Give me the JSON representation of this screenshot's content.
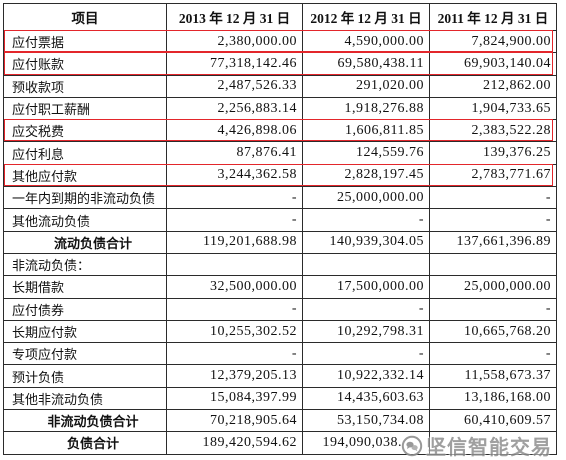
{
  "table": {
    "columns": [
      "项目",
      "2013 年 12 月 31 日",
      "2012 年 12 月 31 日",
      "2011 年 12 月 31 日"
    ],
    "rows": [
      {
        "label": "应付票据",
        "values": [
          "2,380,000.00",
          "4,590,000.00",
          "7,824,900.00"
        ],
        "highlighted": true
      },
      {
        "label": "应付账款",
        "values": [
          "77,318,142.46",
          "69,580,438.11",
          "69,903,140.04"
        ],
        "highlighted": true
      },
      {
        "label": "预收款项",
        "values": [
          "2,487,526.33",
          "291,020.00",
          "212,862.00"
        ]
      },
      {
        "label": "应付职工薪酬",
        "values": [
          "2,256,883.14",
          "1,918,276.88",
          "1,904,733.65"
        ]
      },
      {
        "label": "应交税费",
        "values": [
          "4,426,898.06",
          "1,606,811.85",
          "2,383,522.28"
        ],
        "highlighted": true
      },
      {
        "label": "应付利息",
        "values": [
          "87,876.41",
          "124,559.76",
          "139,376.25"
        ]
      },
      {
        "label": "其他应付款",
        "values": [
          "3,244,362.58",
          "2,828,197.45",
          "2,783,771.67"
        ],
        "highlighted": true
      },
      {
        "label": "一年内到期的非流动负债",
        "values": [
          "-",
          "25,000,000.00",
          "-"
        ]
      },
      {
        "label": "其他流动负债",
        "values": [
          "-",
          "-",
          "-"
        ]
      },
      {
        "label": "流动负债合计",
        "values": [
          "119,201,688.98",
          "140,939,304.05",
          "137,661,396.89"
        ]
      },
      {
        "label": "非流动负债：",
        "values": []
      },
      {
        "label": "长期借款",
        "values": [
          "32,500,000.00",
          "17,500,000.00",
          "25,000,000.00"
        ]
      },
      {
        "label": "应付债券",
        "values": [
          "-",
          "-",
          "-"
        ]
      },
      {
        "label": "长期应付款",
        "values": [
          "10,255,302.52",
          "10,292,798.31",
          "10,665,768.20"
        ]
      },
      {
        "label": "专项应付款",
        "values": [
          "-",
          "-",
          "-"
        ]
      },
      {
        "label": "预计负债",
        "values": [
          "12,379,205.13",
          "10,922,332.14",
          "11,558,673.37"
        ]
      },
      {
        "label": "其他非流动负债",
        "values": [
          "15,084,397.99",
          "14,435,603.63",
          "13,186,168.00"
        ]
      },
      {
        "label": "非流动负债合计",
        "values": [
          "70,218,905.64",
          "53,150,734.08",
          "60,410,609.57"
        ]
      },
      {
        "label": "负债合计",
        "values": [
          "189,420,594.62",
          "194,090,038."
        ]
      }
    ]
  },
  "watermark": {
    "text": "坚信智能交易",
    "icon": "watermark-logo-icon"
  },
  "colors": {
    "highlight_box": "#e3262b",
    "grid": "#2b2b2b",
    "watermark": "#8f8f8f"
  }
}
